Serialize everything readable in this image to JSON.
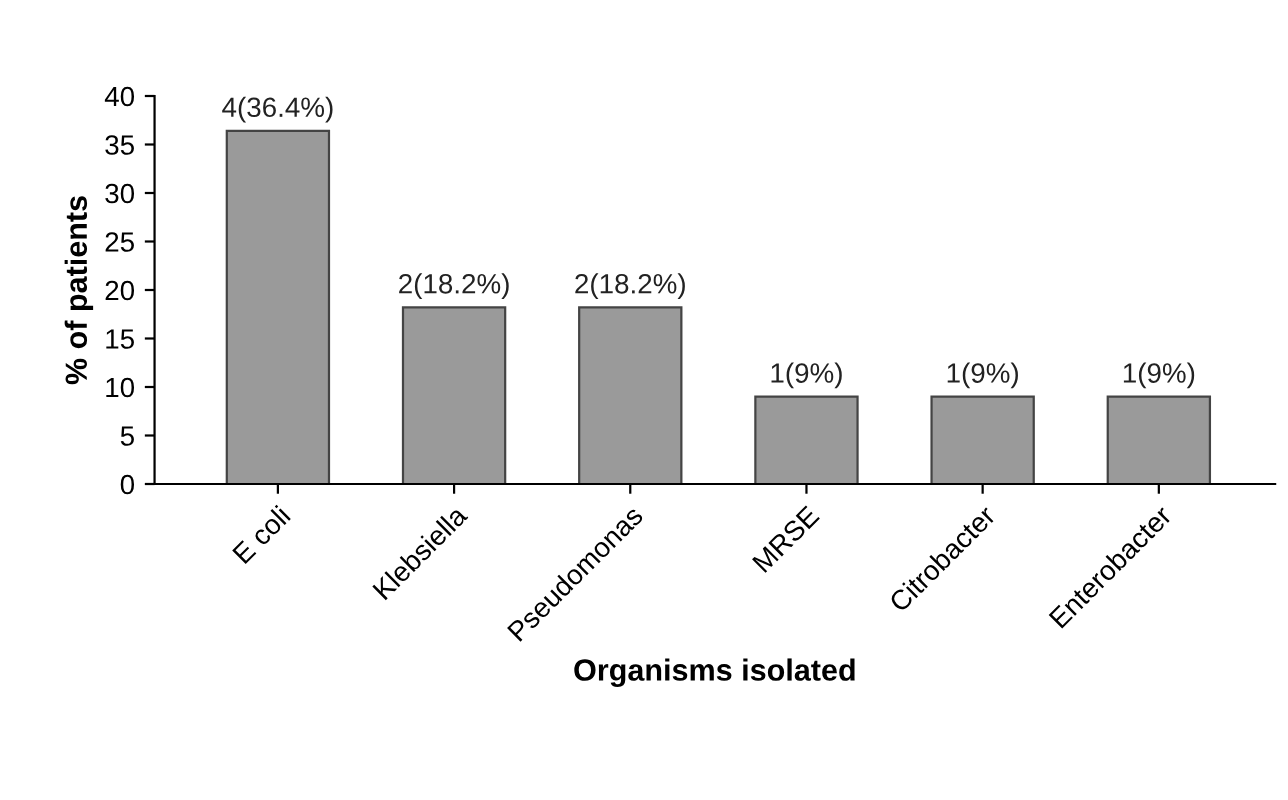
{
  "chart_data": {
    "type": "bar",
    "xlabel": "Organisms isolated",
    "ylabel": "% of patients",
    "categories": [
      "E coli",
      "Klebsiella",
      "Pseudomonas",
      "MRSE",
      "Citrobacter",
      "Enterobacter"
    ],
    "values": [
      36.4,
      18.2,
      18.2,
      9,
      9,
      9
    ],
    "value_labels": [
      "4(36.4%)",
      "2(18.2%)",
      "2(18.2%)",
      "1(9%)",
      "1(9%)",
      "1(9%)"
    ],
    "color": "#9a9a9a",
    "ylim": [
      0,
      40
    ],
    "yticks": [
      0,
      5,
      10,
      15,
      20,
      25,
      30,
      35,
      40
    ],
    "grid": false,
    "legend": false
  }
}
